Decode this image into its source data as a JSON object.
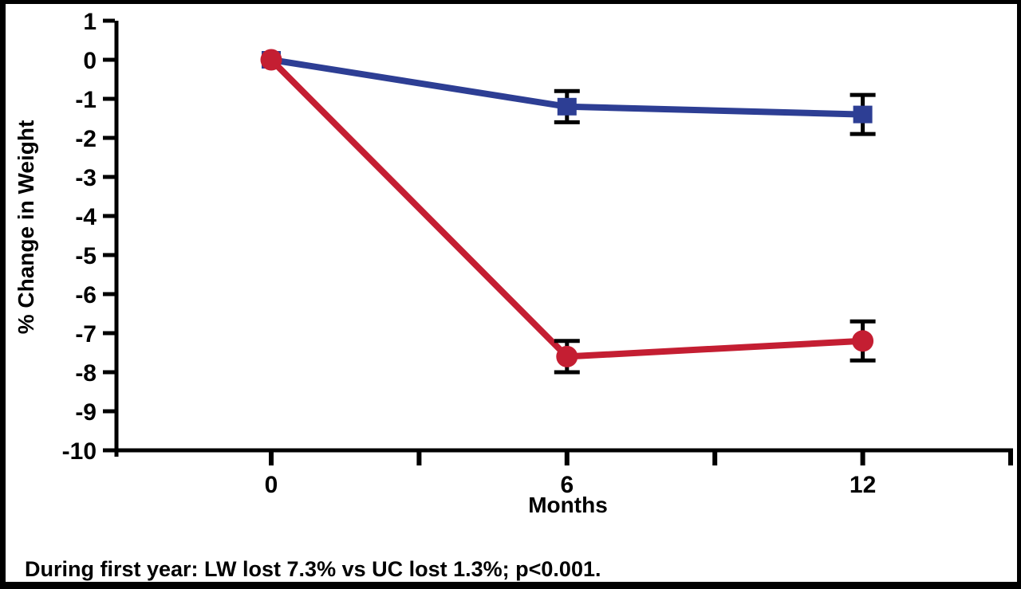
{
  "chart_data": {
    "type": "line",
    "title": "",
    "xlabel": "Months",
    "ylabel": "% Change in Weight",
    "caption": "During first year: LW lost 7.3% vs UC lost 1.3%; p<0.001.",
    "x": [
      0,
      6,
      12
    ],
    "xtick_labels": [
      "0",
      "6",
      "12"
    ],
    "xticks_minor": [
      3,
      9,
      15
    ],
    "yticks": [
      1,
      0,
      -1,
      -2,
      -3,
      -4,
      -5,
      -6,
      -7,
      -8,
      -9,
      -10
    ],
    "xlim": [
      -3.2,
      15.1
    ],
    "ylim": [
      -10,
      1
    ],
    "grid": false,
    "legend_position": "none",
    "axis_color": "#000000",
    "error_bar_color": "#000000",
    "series": [
      {
        "name": "UC",
        "marker": "square",
        "color": "#2d3e94",
        "values": [
          0,
          -1.2,
          -1.4
        ],
        "error": [
          0,
          0.4,
          0.5
        ]
      },
      {
        "name": "LW",
        "marker": "circle",
        "color": "#c41e32",
        "values": [
          0,
          -7.6,
          -7.2
        ],
        "error": [
          0,
          0.4,
          0.5
        ]
      }
    ]
  }
}
